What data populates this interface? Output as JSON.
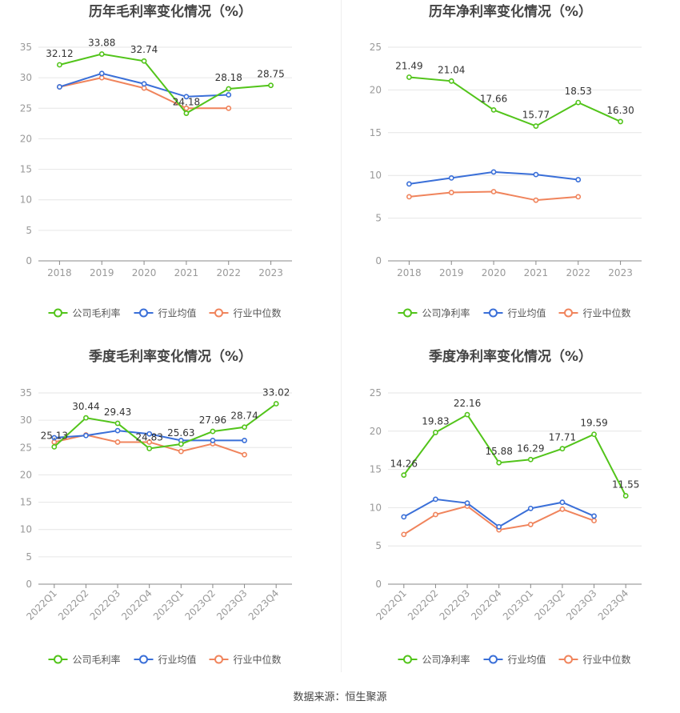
{
  "source_text": "数据来源：恒生聚源",
  "colors": {
    "company": "#52c41a",
    "industry_avg": "#3a6fd8",
    "industry_median": "#f0845c",
    "grid": "#e6e6e6",
    "axis": "#999999",
    "title": "#444444"
  },
  "chart_data": [
    {
      "type": "line",
      "title": "历年毛利率变化情况（%）",
      "categories": [
        "2018",
        "2019",
        "2020",
        "2021",
        "2022",
        "2023"
      ],
      "ylim": [
        0,
        35
      ],
      "yticks": [
        0,
        5,
        10,
        15,
        20,
        25,
        30,
        35
      ],
      "legend": [
        "公司毛利率",
        "行业均值",
        "行业中位数"
      ],
      "legend_position": "bottom",
      "series": [
        {
          "name": "公司毛利率",
          "values": [
            32.12,
            33.88,
            32.74,
            24.18,
            28.18,
            28.75
          ],
          "labels": [
            "32.12",
            "33.88",
            "32.74",
            "24.18",
            "28.18",
            "28.75"
          ]
        },
        {
          "name": "行业均值",
          "values": [
            28.5,
            30.7,
            29.0,
            26.9,
            27.2,
            null
          ]
        },
        {
          "name": "行业中位数",
          "values": [
            28.5,
            30.0,
            28.3,
            25.0,
            25.0,
            null
          ]
        }
      ]
    },
    {
      "type": "line",
      "title": "历年净利率变化情况（%）",
      "categories": [
        "2018",
        "2019",
        "2020",
        "2021",
        "2022",
        "2023"
      ],
      "ylim": [
        0,
        25
      ],
      "yticks": [
        0,
        5,
        10,
        15,
        20,
        25
      ],
      "legend": [
        "公司净利率",
        "行业均值",
        "行业中位数"
      ],
      "legend_position": "bottom",
      "series": [
        {
          "name": "公司净利率",
          "values": [
            21.49,
            21.04,
            17.66,
            15.77,
            18.53,
            16.3
          ],
          "labels": [
            "21.49",
            "21.04",
            "17.66",
            "15.77",
            "18.53",
            "16.30"
          ]
        },
        {
          "name": "行业均值",
          "values": [
            9.0,
            9.7,
            10.4,
            10.1,
            9.5,
            null
          ]
        },
        {
          "name": "行业中位数",
          "values": [
            7.5,
            8.0,
            8.1,
            7.1,
            7.5,
            null
          ]
        }
      ]
    },
    {
      "type": "line",
      "title": "季度毛利率变化情况（%）",
      "categories": [
        "2022Q1",
        "2022Q2",
        "2022Q3",
        "2022Q4",
        "2023Q1",
        "2023Q2",
        "2023Q3",
        "2023Q4"
      ],
      "ylim": [
        0,
        35
      ],
      "yticks": [
        0,
        5,
        10,
        15,
        20,
        25,
        30,
        35
      ],
      "legend": [
        "公司毛利率",
        "行业均值",
        "行业中位数"
      ],
      "legend_position": "bottom",
      "series": [
        {
          "name": "公司毛利率",
          "values": [
            25.13,
            30.44,
            29.43,
            24.83,
            25.63,
            27.96,
            28.74,
            33.02
          ],
          "labels": [
            "25.13",
            "30.44",
            "29.43",
            "24.83",
            "25.63",
            "27.96",
            "28.74",
            "33.02"
          ]
        },
        {
          "name": "行业均值",
          "values": [
            26.8,
            27.2,
            28.1,
            27.5,
            26.3,
            26.3,
            26.3,
            null
          ]
        },
        {
          "name": "行业中位数",
          "values": [
            26.0,
            27.3,
            26.0,
            26.0,
            24.3,
            25.7,
            23.7,
            null
          ]
        }
      ]
    },
    {
      "type": "line",
      "title": "季度净利率变化情况（%）",
      "categories": [
        "2022Q1",
        "2022Q2",
        "2022Q3",
        "2022Q4",
        "2023Q1",
        "2023Q2",
        "2023Q3",
        "2023Q4"
      ],
      "ylim": [
        0,
        25
      ],
      "yticks": [
        0,
        5,
        10,
        15,
        20,
        25
      ],
      "legend": [
        "公司净利率",
        "行业均值",
        "行业中位数"
      ],
      "legend_position": "bottom",
      "series": [
        {
          "name": "公司净利率",
          "values": [
            14.26,
            19.83,
            22.16,
            15.88,
            16.29,
            17.71,
            19.59,
            11.55
          ],
          "labels": [
            "14.26",
            "19.83",
            "22.16",
            "15.88",
            "16.29",
            "17.71",
            "19.59",
            "11.55"
          ]
        },
        {
          "name": "行业均值",
          "values": [
            8.8,
            11.1,
            10.6,
            7.5,
            9.9,
            10.7,
            8.9,
            null
          ]
        },
        {
          "name": "行业中位数",
          "values": [
            6.5,
            9.1,
            10.2,
            7.1,
            7.8,
            9.8,
            8.3,
            null
          ]
        }
      ]
    }
  ]
}
